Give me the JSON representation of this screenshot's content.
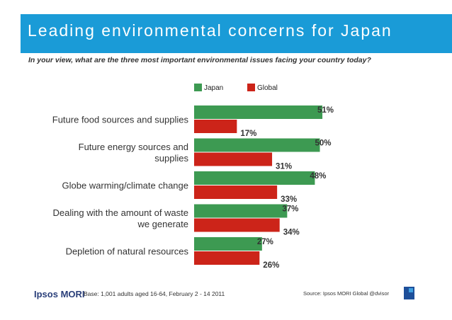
{
  "header": {
    "title": "Leading environmental concerns for Japan",
    "subtitle": "In your view, what are the three most important environmental issues facing your country today?"
  },
  "colors": {
    "header_bg": "#1a9bd7",
    "japan": "#3d9a52",
    "global": "#cc2419"
  },
  "chart_data": {
    "type": "bar",
    "orientation": "horizontal",
    "categories": [
      [
        "Future food sources and supplies"
      ],
      [
        "Future energy sources and",
        "supplies"
      ],
      [
        "Globe warming/climate change"
      ],
      [
        "Dealing with the amount of waste",
        "we generate"
      ],
      [
        "Depletion of natural resources"
      ]
    ],
    "series": [
      {
        "name": "Japan",
        "values": [
          51,
          50,
          48,
          37,
          27
        ],
        "labels": [
          "51%",
          "50%",
          "48%",
          "37%",
          "27%"
        ]
      },
      {
        "name": "Global",
        "values": [
          17,
          31,
          33,
          34,
          26
        ],
        "labels": [
          "17%",
          "31%",
          "33%",
          "34%",
          "26%"
        ]
      }
    ],
    "xlim": [
      0,
      60
    ],
    "legend_position": "top",
    "grid": false
  },
  "footer": {
    "logo_text": "Ipsos MORI",
    "base": "Base: 1,001 adults aged 16-64, February 2 - 14 2011",
    "source": "Source: Ipsos MORI Global @dvisor"
  }
}
